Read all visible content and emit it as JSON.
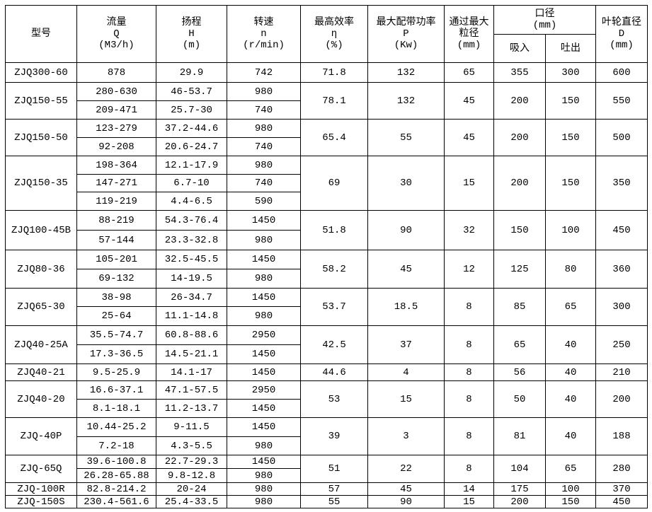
{
  "header": {
    "model": "型号",
    "flow": [
      "流量",
      "Q",
      "(M3/h)"
    ],
    "head": [
      "扬程",
      "H",
      "(m)"
    ],
    "speed": [
      "转速",
      "n",
      "(r/min)"
    ],
    "efficiency": [
      "最高效率",
      "η",
      "(%)"
    ],
    "power": [
      "最大配带功率",
      "P",
      "(Kw)"
    ],
    "particle": [
      "通过最大",
      "粒径",
      "(mm)"
    ],
    "diameter": [
      "口径",
      "(mm)"
    ],
    "suction": "吸入",
    "discharge": "吐出",
    "impeller": [
      "叶轮直径",
      "D",
      "(mm)"
    ]
  },
  "models": [
    {
      "model": "ZJQ300-60",
      "rows": [
        [
          "878",
          "29.9",
          "742"
        ]
      ],
      "eff": "71.8",
      "power": "132",
      "particle": "65",
      "suction": "355",
      "discharge": "300",
      "impeller": "600"
    },
    {
      "model": "ZJQ150-55",
      "rows": [
        [
          "280-630",
          "46-53.7",
          "980"
        ],
        [
          "209-471",
          "25.7-30",
          "740"
        ]
      ],
      "eff": "78.1",
      "power": "132",
      "particle": "45",
      "suction": "200",
      "discharge": "150",
      "impeller": "550"
    },
    {
      "model": "ZJQ150-50",
      "rows": [
        [
          "123-279",
          "37.2-44.6",
          "980"
        ],
        [
          "92-208",
          "20.6-24.7",
          "740"
        ]
      ],
      "eff": "65.4",
      "power": "55",
      "particle": "45",
      "suction": "200",
      "discharge": "150",
      "impeller": "500"
    },
    {
      "model": "ZJQ150-35",
      "rows": [
        [
          "198-364",
          "12.1-17.9",
          "980"
        ],
        [
          "147-271",
          "6.7-10",
          "740"
        ],
        [
          "119-219",
          "4.4-6.5",
          "590"
        ]
      ],
      "eff": "69",
      "power": "30",
      "particle": "15",
      "suction": "200",
      "discharge": "150",
      "impeller": "350"
    },
    {
      "model": "ZJQ100-45B",
      "rows": [
        [
          "88-219",
          "54.3-76.4",
          "1450"
        ],
        [
          "57-144",
          "23.3-32.8",
          "980"
        ]
      ],
      "eff": "51.8",
      "power": "90",
      "particle": "32",
      "suction": "150",
      "discharge": "100",
      "impeller": "450"
    },
    {
      "model": "ZJQ80-36",
      "rows": [
        [
          "105-201",
          "32.5-45.5",
          "1450"
        ],
        [
          "69-132",
          "14-19.5",
          "980"
        ]
      ],
      "eff": "58.2",
      "power": "45",
      "particle": "12",
      "suction": "125",
      "discharge": "80",
      "impeller": "360"
    },
    {
      "model": "ZJQ65-30",
      "rows": [
        [
          "38-98",
          "26-34.7",
          "1450"
        ],
        [
          "25-64",
          "11.1-14.8",
          "980"
        ]
      ],
      "eff": "53.7",
      "power": "18.5",
      "particle": "8",
      "suction": "85",
      "discharge": "65",
      "impeller": "300"
    },
    {
      "model": "ZJQ40-25A",
      "rows": [
        [
          "35.5-74.7",
          "60.8-88.6",
          "2950"
        ],
        [
          "17.3-36.5",
          "14.5-21.1",
          "1450"
        ]
      ],
      "eff": "42.5",
      "power": "37",
      "particle": "8",
      "suction": "65",
      "discharge": "40",
      "impeller": "250"
    },
    {
      "model": "ZJQ40-21",
      "rows": [
        [
          "9.5-25.9",
          "14.1-17",
          "1450"
        ]
      ],
      "eff": "44.6",
      "power": "4",
      "particle": "8",
      "suction": "56",
      "discharge": "40",
      "impeller": "210"
    },
    {
      "model": "ZJQ40-20",
      "rows": [
        [
          "16.6-37.1",
          "47.1-57.5",
          "2950"
        ],
        [
          "8.1-18.1",
          "11.2-13.7",
          "1450"
        ]
      ],
      "eff": "53",
      "power": "15",
      "particle": "8",
      "suction": "50",
      "discharge": "40",
      "impeller": "200"
    },
    {
      "model": "ZJQ-40P",
      "rows": [
        [
          "10.44-25.2",
          "9-11.5",
          "1450"
        ],
        [
          "7.2-18",
          "4.3-5.5",
          "980"
        ]
      ],
      "eff": "39",
      "power": "3",
      "particle": "8",
      "suction": "81",
      "discharge": "40",
      "impeller": "188"
    },
    {
      "model": "ZJQ-65Q",
      "rows": [
        [
          "39.6-100.8",
          "22.7-29.3",
          "1450"
        ],
        [
          "26.28-65.88",
          "9.8-12.8",
          "980"
        ]
      ],
      "eff": "51",
      "power": "22",
      "particle": "8",
      "suction": "104",
      "discharge": "65",
      "impeller": "280"
    },
    {
      "model": "ZJQ-100R",
      "rows": [
        [
          "82.8-214.2",
          "20-24",
          "980"
        ]
      ],
      "eff": "57",
      "power": "45",
      "particle": "14",
      "suction": "175",
      "discharge": "100",
      "impeller": "370"
    },
    {
      "model": "ZJQ-150S",
      "rows": [
        [
          "230.4-561.6",
          "25.4-33.5",
          "980"
        ]
      ],
      "eff": "55",
      "power": "90",
      "particle": "15",
      "suction": "200",
      "discharge": "150",
      "impeller": "450"
    }
  ]
}
